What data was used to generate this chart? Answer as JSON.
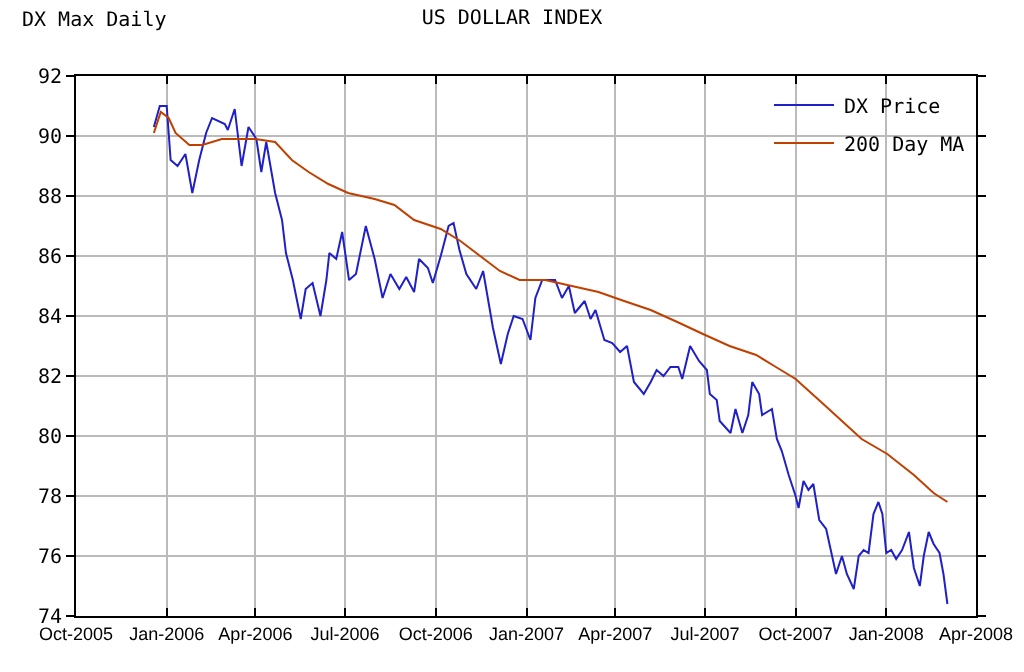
{
  "chart_data": {
    "type": "line",
    "title": "US DOLLAR INDEX",
    "subtitle": "DX Max Daily",
    "xlim": [
      "2005-10-01",
      "2008-04-01"
    ],
    "xticks": [
      {
        "value": "2005-10-01",
        "label": "Oct-2005"
      },
      {
        "value": "2006-01-01",
        "label": "Jan-2006"
      },
      {
        "value": "2006-04-01",
        "label": "Apr-2006"
      },
      {
        "value": "2006-07-01",
        "label": "Jul-2006"
      },
      {
        "value": "2006-10-01",
        "label": "Oct-2006"
      },
      {
        "value": "2007-01-01",
        "label": "Jan-2007"
      },
      {
        "value": "2007-04-01",
        "label": "Apr-2007"
      },
      {
        "value": "2007-07-01",
        "label": "Jul-2007"
      },
      {
        "value": "2007-10-01",
        "label": "Oct-2007"
      },
      {
        "value": "2008-01-01",
        "label": "Jan-2008"
      },
      {
        "value": "2008-04-01",
        "label": "Apr-2008"
      }
    ],
    "ylim": [
      74,
      92
    ],
    "yticks": [
      74,
      76,
      78,
      80,
      82,
      84,
      86,
      88,
      90,
      92
    ],
    "grid": true,
    "legend": "top right",
    "line_style": "solid",
    "series": [
      {
        "name": "DX Price",
        "color": "#2020c8",
        "x": [
          "2005-12-19",
          "2005-12-25",
          "2006-01-01",
          "2006-01-05",
          "2006-01-12",
          "2006-01-20",
          "2006-01-27",
          "2006-02-03",
          "2006-02-10",
          "2006-02-16",
          "2006-03-01",
          "2006-03-04",
          "2006-03-11",
          "2006-03-18",
          "2006-03-25",
          "2006-04-02",
          "2006-04-07",
          "2006-04-12",
          "2006-04-21",
          "2006-04-28",
          "2006-05-02",
          "2006-05-09",
          "2006-05-17",
          "2006-05-22",
          "2006-05-29",
          "2006-06-06",
          "2006-06-12",
          "2006-06-15",
          "2006-06-22",
          "2006-06-28",
          "2006-07-05",
          "2006-07-12",
          "2006-07-22",
          "2006-07-31",
          "2006-08-08",
          "2006-08-16",
          "2006-08-25",
          "2006-09-01",
          "2006-09-09",
          "2006-09-14",
          "2006-09-23",
          "2006-09-28",
          "2006-10-06",
          "2006-10-14",
          "2006-10-19",
          "2006-10-25",
          "2006-11-01",
          "2006-11-11",
          "2006-11-18",
          "2006-11-28",
          "2006-12-06",
          "2006-12-13",
          "2006-12-19",
          "2006-12-28",
          "2007-01-05",
          "2007-01-10",
          "2007-01-17",
          "2007-01-30",
          "2007-02-06",
          "2007-02-13",
          "2007-02-19",
          "2007-03-01",
          "2007-03-07",
          "2007-03-12",
          "2007-03-21",
          "2007-03-29",
          "2007-04-06",
          "2007-04-13",
          "2007-04-20",
          "2007-04-30",
          "2007-05-07",
          "2007-05-13",
          "2007-05-20",
          "2007-05-27",
          "2007-06-04",
          "2007-06-08",
          "2007-06-16",
          "2007-06-25",
          "2007-07-03",
          "2007-07-06",
          "2007-07-13",
          "2007-07-16",
          "2007-07-27",
          "2007-08-01",
          "2007-08-08",
          "2007-08-14",
          "2007-08-18",
          "2007-08-25",
          "2007-08-28",
          "2007-09-07",
          "2007-09-12",
          "2007-09-17",
          "2007-09-24",
          "2007-10-01",
          "2007-10-04",
          "2007-10-09",
          "2007-10-14",
          "2007-10-19",
          "2007-10-25",
          "2007-11-01",
          "2007-11-05",
          "2007-11-11",
          "2007-11-17",
          "2007-11-22",
          "2007-11-29",
          "2007-12-04",
          "2007-12-09",
          "2007-12-14",
          "2007-12-19",
          "2007-12-24",
          "2007-12-28",
          "2008-01-01",
          "2008-01-06",
          "2008-01-11",
          "2008-01-17",
          "2008-01-24",
          "2008-01-29",
          "2008-02-04",
          "2008-02-08",
          "2008-02-13",
          "2008-02-18",
          "2008-02-24",
          "2008-02-28",
          "2008-03-03"
        ],
        "values": [
          90.3,
          91.0,
          91.0,
          89.2,
          89.0,
          89.4,
          88.1,
          89.2,
          90.1,
          90.6,
          90.4,
          90.2,
          90.9,
          89.0,
          90.3,
          89.9,
          88.8,
          89.8,
          88.1,
          87.2,
          86.1,
          85.2,
          83.9,
          84.9,
          85.1,
          84.0,
          85.2,
          86.1,
          85.9,
          86.8,
          85.2,
          85.4,
          87.0,
          85.9,
          84.6,
          85.4,
          84.9,
          85.3,
          84.8,
          85.9,
          85.6,
          85.1,
          86.0,
          87.0,
          87.1,
          86.2,
          85.4,
          84.9,
          85.5,
          83.6,
          82.4,
          83.4,
          84.0,
          83.9,
          83.2,
          84.6,
          85.2,
          85.2,
          84.6,
          85.0,
          84.1,
          84.5,
          83.9,
          84.2,
          83.2,
          83.1,
          82.8,
          83.0,
          81.8,
          81.4,
          81.8,
          82.2,
          82.0,
          82.3,
          82.3,
          81.9,
          83.0,
          82.5,
          82.2,
          81.4,
          81.2,
          80.5,
          80.1,
          80.9,
          80.1,
          80.7,
          81.8,
          81.4,
          80.7,
          80.9,
          79.9,
          79.5,
          78.7,
          78.0,
          77.6,
          78.5,
          78.2,
          78.4,
          77.2,
          76.9,
          76.3,
          75.4,
          76.0,
          75.4,
          74.9,
          76.0,
          76.2,
          76.1,
          77.4,
          77.8,
          77.4,
          76.1,
          76.2,
          75.9,
          76.2,
          76.8,
          75.6,
          75.0,
          76.0,
          76.8,
          76.4,
          76.1,
          75.4,
          74.4
        ]
      },
      {
        "name": "200 Day MA",
        "color": "#c04000",
        "x": [
          "2005-12-19",
          "2005-12-26",
          "2006-01-03",
          "2006-01-10",
          "2006-01-24",
          "2006-02-06",
          "2006-02-26",
          "2006-04-01",
          "2006-04-21",
          "2006-05-08",
          "2006-05-25",
          "2006-06-14",
          "2006-07-04",
          "2006-07-31",
          "2006-08-20",
          "2006-09-09",
          "2006-10-06",
          "2006-10-26",
          "2006-11-15",
          "2006-12-05",
          "2006-12-25",
          "2007-01-20",
          "2007-02-16",
          "2007-03-15",
          "2007-04-10",
          "2007-05-07",
          "2007-06-03",
          "2007-06-29",
          "2007-07-26",
          "2007-08-22",
          "2007-09-11",
          "2007-10-01",
          "2007-10-28",
          "2007-11-17",
          "2007-12-07",
          "2008-01-02",
          "2008-01-29",
          "2008-02-18",
          "2008-03-03"
        ],
        "values": [
          90.1,
          90.8,
          90.6,
          90.1,
          89.7,
          89.7,
          89.9,
          89.9,
          89.8,
          89.2,
          88.8,
          88.4,
          88.1,
          87.9,
          87.7,
          87.2,
          86.9,
          86.5,
          86.0,
          85.5,
          85.2,
          85.2,
          85.0,
          84.8,
          84.5,
          84.2,
          83.8,
          83.4,
          83.0,
          82.7,
          82.3,
          81.9,
          81.1,
          80.5,
          79.9,
          79.4,
          78.7,
          78.1,
          77.8
        ]
      }
    ]
  }
}
